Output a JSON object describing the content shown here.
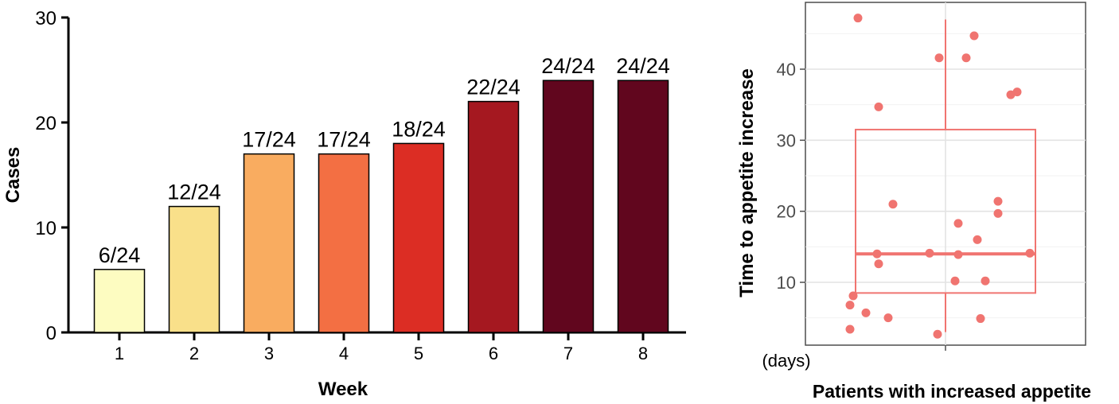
{
  "chart_data": [
    {
      "type": "bar",
      "xlabel": "Week",
      "ylabel": "Cases",
      "ylim": [
        0,
        30
      ],
      "yticks": [
        0,
        10,
        20,
        30
      ],
      "grid": false,
      "categories": [
        "1",
        "2",
        "3",
        "4",
        "5",
        "6",
        "7",
        "8"
      ],
      "values": [
        6,
        12,
        17,
        17,
        18,
        22,
        24,
        24
      ],
      "data_labels": [
        "6/24",
        "12/24",
        "17/24",
        "17/24",
        "18/24",
        "22/24",
        "24/24",
        "24/24"
      ],
      "colors": [
        "#fdfcc1",
        "#f9e08a",
        "#f9ac60",
        "#f36f43",
        "#dc2d24",
        "#a51820",
        "#61061e",
        "#61061e"
      ]
    },
    {
      "type": "box",
      "xlabel": "Patients with increased appetite",
      "ylabel": "Time to appetite increase",
      "unit_label": "(days)",
      "ylim": [
        0,
        50
      ],
      "yticks": [
        10,
        20,
        30,
        40
      ],
      "grid": true,
      "color": "#f07470",
      "box": {
        "min": 3,
        "q1": 8.5,
        "median": 14,
        "q3": 31.5,
        "max": 47
      },
      "points": [
        {
          "x": -0.55,
          "y": 47.2
        },
        {
          "x": 0.18,
          "y": 44.7
        },
        {
          "x": -0.04,
          "y": 41.6
        },
        {
          "x": 0.13,
          "y": 41.6
        },
        {
          "x": -0.42,
          "y": 34.7
        },
        {
          "x": 0.41,
          "y": 36.4
        },
        {
          "x": 0.45,
          "y": 36.8
        },
        {
          "x": -0.33,
          "y": 21.0
        },
        {
          "x": 0.33,
          "y": 21.4
        },
        {
          "x": 0.33,
          "y": 19.7
        },
        {
          "x": 0.08,
          "y": 18.3
        },
        {
          "x": 0.2,
          "y": 16.0
        },
        {
          "x": -0.43,
          "y": 14.0
        },
        {
          "x": -0.42,
          "y": 12.6
        },
        {
          "x": -0.1,
          "y": 14.1
        },
        {
          "x": 0.08,
          "y": 13.9
        },
        {
          "x": 0.53,
          "y": 14.1
        },
        {
          "x": 0.06,
          "y": 10.2
        },
        {
          "x": 0.25,
          "y": 10.2
        },
        {
          "x": -0.58,
          "y": 8.1
        },
        {
          "x": -0.6,
          "y": 6.8
        },
        {
          "x": -0.5,
          "y": 5.7
        },
        {
          "x": -0.36,
          "y": 5.0
        },
        {
          "x": 0.22,
          "y": 4.9
        },
        {
          "x": -0.6,
          "y": 3.4
        },
        {
          "x": -0.05,
          "y": 2.7
        }
      ]
    }
  ]
}
